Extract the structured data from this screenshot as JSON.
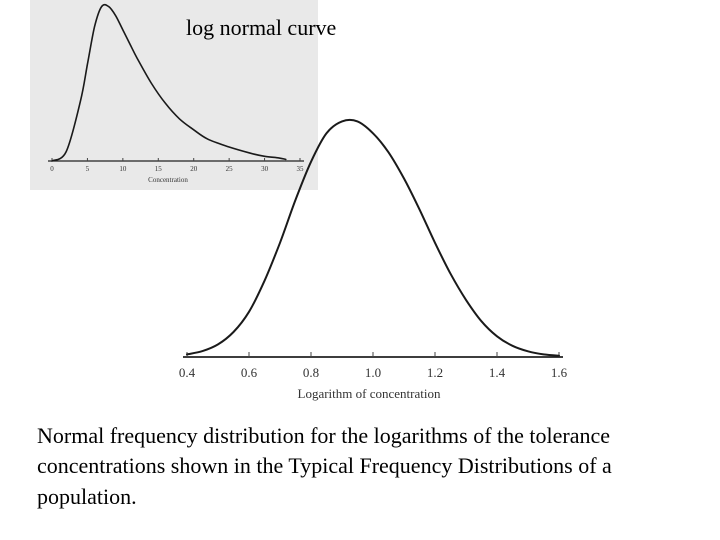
{
  "title": "log normal curve",
  "caption": "Normal frequency distribution for the logarithms of the tolerance concentrations shown in the Typical Frequency Distributions of a population.",
  "chart_data": [
    {
      "type": "line",
      "subtitle": "log normal curve",
      "xlabel": "Concentration",
      "ylabel": "",
      "xlim": [
        0,
        35
      ],
      "x_ticks": [
        0,
        5,
        10,
        15,
        20,
        25,
        30,
        35
      ],
      "grid": false,
      "series": [
        {
          "x": [
            0,
            2,
            4,
            5,
            6,
            7,
            8,
            9,
            10,
            11,
            12,
            14,
            16,
            18,
            20,
            22,
            25,
            28,
            30,
            32,
            33
          ],
          "values": [
            0.0,
            0.06,
            0.38,
            0.62,
            0.86,
            0.99,
            0.99,
            0.93,
            0.84,
            0.75,
            0.66,
            0.5,
            0.37,
            0.27,
            0.2,
            0.14,
            0.09,
            0.05,
            0.03,
            0.02,
            0.01
          ]
        }
      ]
    },
    {
      "type": "line",
      "xlabel": "Logarithm of concentration",
      "ylabel": "",
      "xlim": [
        0.4,
        1.6
      ],
      "x_ticks": [
        "0.4",
        "0.6",
        "0.8",
        "1.0",
        "1.2",
        "1.4",
        "1.6"
      ],
      "grid": false,
      "series": [
        {
          "x": [
            0.4,
            0.45,
            0.5,
            0.55,
            0.6,
            0.65,
            0.7,
            0.75,
            0.8,
            0.85,
            0.9,
            0.95,
            1.0,
            1.05,
            1.1,
            1.15,
            1.2,
            1.25,
            1.3,
            1.35,
            1.4,
            1.45,
            1.5,
            1.55,
            1.6
          ],
          "values": [
            0.011,
            0.025,
            0.053,
            0.105,
            0.19,
            0.32,
            0.48,
            0.66,
            0.82,
            0.94,
            0.99,
            0.99,
            0.94,
            0.86,
            0.75,
            0.62,
            0.48,
            0.35,
            0.24,
            0.15,
            0.087,
            0.047,
            0.024,
            0.011,
            0.005
          ]
        }
      ]
    }
  ]
}
